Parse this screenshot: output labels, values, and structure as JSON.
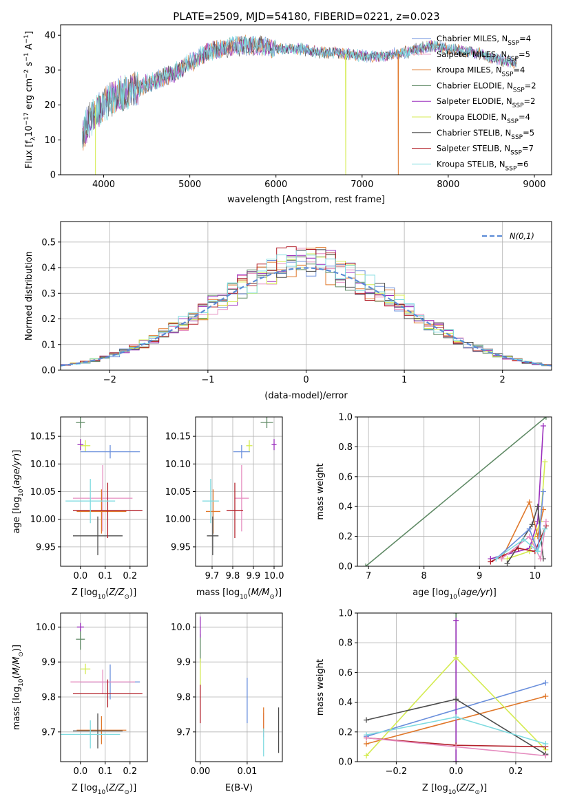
{
  "figure_title": "PLATE=2509, MJD=54180, FIBERID=0221, z=0.023",
  "models": [
    {
      "name": "Chabrier MILES",
      "nssp": "4",
      "color": "#6a8fdc"
    },
    {
      "name": "Salpeter MILES",
      "nssp": "5",
      "color": "#e58cbf"
    },
    {
      "name": "Kroupa MILES",
      "nssp": "4",
      "color": "#e0782b"
    },
    {
      "name": "Chabrier ELODIE",
      "nssp": "2",
      "color": "#5f8a65"
    },
    {
      "name": "Salpeter ELODIE",
      "nssp": "2",
      "color": "#9b2fbd"
    },
    {
      "name": "Kroupa ELODIE",
      "nssp": "4",
      "color": "#d4eb50"
    },
    {
      "name": "Chabrier STELIB",
      "nssp": "5",
      "color": "#4d4d4d"
    },
    {
      "name": "Salpeter STELIB",
      "nssp": "7",
      "color": "#b3202a"
    },
    {
      "name": "Kroupa STELIB",
      "nssp": "6",
      "color": "#7fdbe0"
    }
  ],
  "chart_data": [
    {
      "id": "spectrum",
      "type": "line",
      "xlabel": "wavelength [Angstrom, rest frame]",
      "ylabel": "Flux [f_λ 10^-17 erg cm^-2 s^-1 A^-1]",
      "xlim": [
        3500,
        9200
      ],
      "ylim": [
        0,
        43
      ],
      "xticks": [
        4000,
        5000,
        6000,
        7000,
        8000,
        9000
      ],
      "yticks": [
        0,
        10,
        20,
        30,
        40
      ],
      "grid": false,
      "legend": "top-right",
      "continuum": {
        "x": [
          3750,
          3800,
          3900,
          4000,
          4100,
          4300,
          4500,
          4800,
          5000,
          5200,
          5500,
          5800,
          6000,
          6300,
          6500,
          6700,
          7000,
          7200,
          7500,
          7800,
          8000,
          8300,
          8600,
          8800
        ],
        "y": [
          10,
          14,
          18,
          20,
          22,
          24,
          26,
          29,
          32,
          35,
          37,
          37,
          36,
          36,
          35,
          35,
          34,
          34,
          35,
          37,
          36,
          35,
          33,
          32
        ]
      },
      "dropouts": [
        {
          "series": "Kroupa ELODIE",
          "x": 6810
        },
        {
          "series": "Kroupa MILES",
          "x": 7420
        }
      ]
    },
    {
      "id": "residual_histogram",
      "type": "histogram",
      "xlabel": "(data-model)/error",
      "ylabel": "Normed distribution",
      "xlim": [
        -2.5,
        2.5
      ],
      "ylim": [
        0,
        0.58
      ],
      "xticks": [
        -2,
        -1,
        0,
        1,
        2
      ],
      "yticks": [
        0.0,
        0.1,
        0.2,
        0.3,
        0.4,
        0.5
      ],
      "grid": true,
      "legend": "top-right",
      "reference_curve": "N(0,1)",
      "bin_width": 0.1
    },
    {
      "id": "age_vs_Z",
      "type": "scatter",
      "xlabel": "Z [log10(Z/Z_sun)]",
      "ylabel": "age [log10(age/yr)]",
      "xlim": [
        -0.08,
        0.27
      ],
      "ylim": [
        9.915,
        10.185
      ],
      "xticks": [
        0.0,
        0.1,
        0.2
      ],
      "yticks": [
        9.95,
        10.0,
        10.05,
        10.1,
        10.15
      ],
      "grid": true,
      "points": [
        {
          "series": "Chabrier MILES",
          "x": 0.12,
          "y": 10.122,
          "xerr": 0.12,
          "yerr": 0.012
        },
        {
          "series": "Salpeter MILES",
          "x": 0.09,
          "y": 10.038,
          "xerr": 0.12,
          "yerr": 0.06
        },
        {
          "series": "Kroupa MILES",
          "x": 0.085,
          "y": 10.014,
          "xerr": 0.1,
          "yerr": 0.04
        },
        {
          "series": "Chabrier ELODIE",
          "x": 0.0,
          "y": 10.175,
          "xerr": 0.018,
          "yerr": 0.01
        },
        {
          "series": "Salpeter ELODIE",
          "x": 0.0,
          "y": 10.135,
          "xerr": 0.012,
          "yerr": 0.01
        },
        {
          "series": "Kroupa ELODIE",
          "x": 0.02,
          "y": 10.133,
          "xerr": 0.02,
          "yerr": 0.01
        },
        {
          "series": "Chabrier STELIB",
          "x": 0.07,
          "y": 9.97,
          "xerr": 0.1,
          "yerr": 0.035
        },
        {
          "series": "Salpeter STELIB",
          "x": 0.11,
          "y": 10.016,
          "xerr": 0.14,
          "yerr": 0.05
        },
        {
          "series": "Kroupa STELIB",
          "x": 0.04,
          "y": 10.033,
          "xerr": 0.1,
          "yerr": 0.04
        }
      ]
    },
    {
      "id": "age_vs_mass",
      "type": "scatter",
      "xlabel": "mass [log10(M/M_sun)]",
      "ylabel": "",
      "xlim": [
        9.62,
        10.04
      ],
      "ylim": [
        9.915,
        10.185
      ],
      "xticks": [
        9.7,
        9.8,
        9.9,
        10.0
      ],
      "yticks": [
        9.95,
        10.0,
        10.05,
        10.1,
        10.15
      ],
      "grid": true,
      "points": [
        {
          "series": "Chabrier MILES",
          "x": 9.843,
          "y": 10.122,
          "xerr": 0.04,
          "yerr": 0.012
        },
        {
          "series": "Salpeter MILES",
          "x": 9.843,
          "y": 10.038,
          "xerr": 0.035,
          "yerr": 0.06
        },
        {
          "series": "Kroupa MILES",
          "x": 9.705,
          "y": 10.014,
          "xerr": 0.035,
          "yerr": 0.04
        },
        {
          "series": "Chabrier ELODIE",
          "x": 9.965,
          "y": 10.175,
          "xerr": 0.03,
          "yerr": 0.01
        },
        {
          "series": "Salpeter ELODIE",
          "x": 10.0,
          "y": 10.135,
          "xerr": 0.012,
          "yerr": 0.01
        },
        {
          "series": "Kroupa ELODIE",
          "x": 9.88,
          "y": 10.133,
          "xerr": 0.015,
          "yerr": 0.01
        },
        {
          "series": "Chabrier STELIB",
          "x": 9.703,
          "y": 9.97,
          "xerr": 0.028,
          "yerr": 0.035
        },
        {
          "series": "Salpeter STELIB",
          "x": 9.81,
          "y": 10.016,
          "xerr": 0.04,
          "yerr": 0.05
        },
        {
          "series": "Kroupa STELIB",
          "x": 9.693,
          "y": 10.033,
          "xerr": 0.04,
          "yerr": 0.04
        }
      ]
    },
    {
      "id": "massweight_vs_age",
      "type": "line",
      "xlabel": "age [log10(age/yr)]",
      "ylabel": "mass weight",
      "xlim": [
        6.8,
        10.3
      ],
      "ylim": [
        0,
        1.0
      ],
      "xticks": [
        7,
        8,
        9,
        10
      ],
      "yticks": [
        0.0,
        0.2,
        0.4,
        0.6,
        0.8,
        1.0
      ],
      "grid": true,
      "series": [
        {
          "name": "Chabrier ELODIE",
          "x": [
            6.95,
            10.2
          ],
          "y": [
            0.0,
            1.0
          ]
        },
        {
          "name": "Salpeter ELODIE",
          "x": [
            9.2,
            9.9,
            10.05,
            10.15
          ],
          "y": [
            0.05,
            0.12,
            0.3,
            0.94
          ]
        },
        {
          "name": "Kroupa ELODIE",
          "x": [
            9.5,
            9.9,
            10.1,
            10.18
          ],
          "y": [
            0.05,
            0.1,
            0.3,
            0.7
          ]
        },
        {
          "name": "Kroupa MILES",
          "x": [
            9.4,
            9.9,
            10.05,
            10.15
          ],
          "y": [
            0.05,
            0.43,
            0.2,
            0.38
          ]
        },
        {
          "name": "Chabrier STELIB",
          "x": [
            9.5,
            9.95,
            10.05,
            10.15
          ],
          "y": [
            0.02,
            0.28,
            0.4,
            0.05
          ]
        },
        {
          "name": "Salpeter STELIB",
          "x": [
            9.2,
            9.7,
            10.0,
            10.2
          ],
          "y": [
            0.03,
            0.12,
            0.1,
            0.27
          ]
        },
        {
          "name": "Chabrier MILES",
          "x": [
            9.3,
            9.9,
            10.05,
            10.15
          ],
          "y": [
            0.05,
            0.25,
            0.1,
            0.5
          ]
        },
        {
          "name": "Salpeter MILES",
          "x": [
            9.4,
            9.9,
            10.1,
            10.2
          ],
          "y": [
            0.05,
            0.2,
            0.05,
            0.3
          ]
        },
        {
          "name": "Kroupa STELIB",
          "x": [
            9.3,
            9.8,
            10.05,
            10.18
          ],
          "y": [
            0.05,
            0.18,
            0.1,
            0.25
          ]
        }
      ]
    },
    {
      "id": "mass_vs_Z",
      "type": "scatter",
      "xlabel": "Z [log10(Z/Z_sun)]",
      "ylabel": "mass [log10(M/M_sun)]",
      "xlim": [
        -0.08,
        0.27
      ],
      "ylim": [
        9.615,
        10.04
      ],
      "xticks": [
        0.0,
        0.1,
        0.2
      ],
      "yticks": [
        9.7,
        9.8,
        9.9,
        10.0
      ],
      "grid": true,
      "points": [
        {
          "series": "Chabrier MILES",
          "x": 0.12,
          "y": 9.843,
          "xerr": 0.12,
          "yerr": 0.05
        },
        {
          "series": "Salpeter MILES",
          "x": 0.09,
          "y": 9.843,
          "xerr": 0.13,
          "yerr": 0.035
        },
        {
          "series": "Kroupa MILES",
          "x": 0.085,
          "y": 9.705,
          "xerr": 0.1,
          "yerr": 0.04
        },
        {
          "series": "Chabrier ELODIE",
          "x": 0.0,
          "y": 9.965,
          "xerr": 0.018,
          "yerr": 0.03
        },
        {
          "series": "Salpeter ELODIE",
          "x": 0.0,
          "y": 10.0,
          "xerr": 0.014,
          "yerr": 0.012
        },
        {
          "series": "Kroupa ELODIE",
          "x": 0.02,
          "y": 9.88,
          "xerr": 0.02,
          "yerr": 0.015
        },
        {
          "series": "Chabrier STELIB",
          "x": 0.07,
          "y": 9.703,
          "xerr": 0.1,
          "yerr": 0.05
        },
        {
          "series": "Salpeter STELIB",
          "x": 0.11,
          "y": 9.81,
          "xerr": 0.14,
          "yerr": 0.04
        },
        {
          "series": "Kroupa STELIB",
          "x": 0.04,
          "y": 9.693,
          "xerr": 0.12,
          "yerr": 0.04
        }
      ]
    },
    {
      "id": "mass_vs_EBV",
      "type": "scatter",
      "xlabel": "E(B-V)",
      "ylabel": "",
      "xlim": [
        -0.001,
        0.0175
      ],
      "ylim": [
        9.615,
        10.04
      ],
      "xticks": [
        0.0,
        0.01
      ],
      "yticks": [
        9.7,
        9.8,
        9.9,
        10.0
      ],
      "grid": true,
      "points": [
        {
          "series": "Chabrier MILES",
          "x": 0.01,
          "y": 9.79,
          "xerr": 0,
          "yerr": 0.065
        },
        {
          "series": "Salpeter MILES",
          "x": 0.0135,
          "y": 9.72,
          "xerr": 0,
          "yerr": 0.035
        },
        {
          "series": "Kroupa MILES",
          "x": 0.0135,
          "y": 9.735,
          "xerr": 0,
          "yerr": 0.035
        },
        {
          "series": "Chabrier ELODIE",
          "x": 0.0,
          "y": 9.94,
          "xerr": 0,
          "yerr": 0.04
        },
        {
          "series": "Salpeter ELODIE",
          "x": 0.0,
          "y": 10.0,
          "xerr": 0,
          "yerr": 0.03
        },
        {
          "series": "Kroupa ELODIE",
          "x": 0.0,
          "y": 9.87,
          "xerr": 0,
          "yerr": 0.04
        },
        {
          "series": "Chabrier STELIB",
          "x": 0.0167,
          "y": 9.705,
          "xerr": 0,
          "yerr": 0.065
        },
        {
          "series": "Salpeter STELIB",
          "x": 0.0,
          "y": 9.78,
          "xerr": 0,
          "yerr": 0.055
        },
        {
          "series": "Kroupa STELIB",
          "x": 0.0135,
          "y": 9.67,
          "xerr": 0,
          "yerr": 0.04
        }
      ]
    },
    {
      "id": "massweight_vs_Z",
      "type": "line",
      "xlabel": "Z [log10(Z/Z_sun)]",
      "ylabel": "mass weight",
      "xlim": [
        -0.33,
        0.32
      ],
      "ylim": [
        0,
        1.0
      ],
      "xticks": [
        -0.2,
        0.0,
        0.2
      ],
      "yticks": [
        0.0,
        0.2,
        0.4,
        0.6,
        0.8,
        1.0
      ],
      "grid": true,
      "series": [
        {
          "name": "Chabrier MILES",
          "x": [
            -0.3,
            0.3
          ],
          "y": [
            0.17,
            0.53
          ]
        },
        {
          "name": "Kroupa MILES",
          "x": [
            -0.3,
            0.3
          ],
          "y": [
            0.12,
            0.44
          ]
        },
        {
          "name": "Chabrier ELODIE",
          "x": [
            0.0,
            0.0
          ],
          "y": [
            0.0,
            1.0
          ]
        },
        {
          "name": "Salpeter ELODIE",
          "x": [
            0.0,
            0.0
          ],
          "y": [
            0.0,
            0.95
          ]
        },
        {
          "name": "Kroupa ELODIE",
          "x": [
            -0.3,
            0.0,
            0.3
          ],
          "y": [
            0.04,
            0.7,
            0.08
          ]
        },
        {
          "name": "Chabrier STELIB",
          "x": [
            -0.3,
            0.0,
            0.3
          ],
          "y": [
            0.28,
            0.42,
            0.05
          ]
        },
        {
          "name": "Salpeter STELIB",
          "x": [
            -0.3,
            0.0,
            0.3
          ],
          "y": [
            0.16,
            0.11,
            0.1
          ]
        },
        {
          "name": "Kroupa STELIB",
          "x": [
            -0.3,
            0.0,
            0.3
          ],
          "y": [
            0.18,
            0.3,
            0.12
          ]
        },
        {
          "name": "Salpeter MILES",
          "x": [
            -0.3,
            0.0,
            0.3
          ],
          "y": [
            0.16,
            0.1,
            0.04
          ]
        }
      ]
    }
  ]
}
